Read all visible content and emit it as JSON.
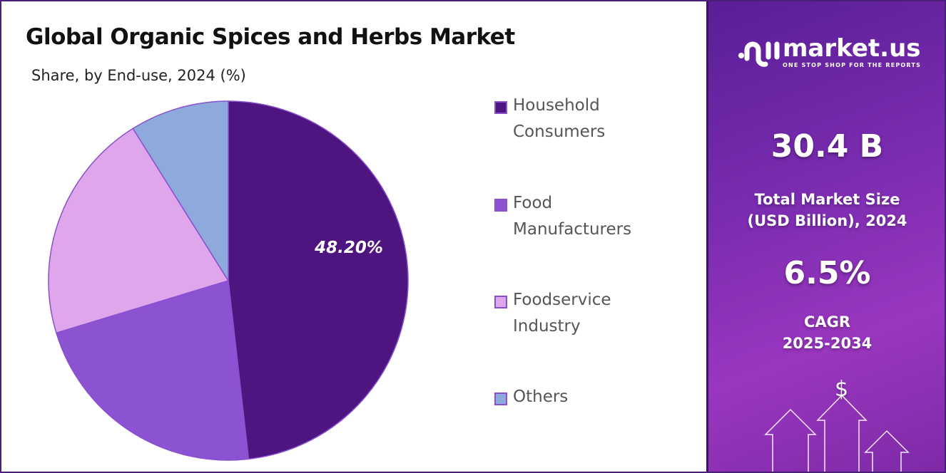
{
  "chart_data": {
    "type": "pie",
    "title": "Global Organic Spices and Herbs Market",
    "subtitle": "Share, by End-use, 2024 (%)",
    "categories": [
      "Household Consumers",
      "Food Manufacturers",
      "Foodservice Industry",
      "Others"
    ],
    "values": [
      48.2,
      22.1,
      20.8,
      8.9
    ],
    "data_labels": [
      "48.20%",
      "",
      "",
      ""
    ],
    "colors": [
      "#4e1581",
      "#8b52d2",
      "#dfa6ec",
      "#8eaadc"
    ],
    "legend_position": "right"
  },
  "legend": {
    "items": [
      {
        "line1": "Household",
        "line2": "Consumers"
      },
      {
        "line1": "Food",
        "line2": "Manufacturers"
      },
      {
        "line1": "Foodservice",
        "line2": "Industry"
      },
      {
        "line1": "Others",
        "line2": ""
      }
    ]
  },
  "sidebar": {
    "logo_name": "market.us",
    "logo_tagline": "ONE STOP SHOP FOR THE REPORTS",
    "market_size": "30.4 B",
    "market_size_label_1": "Total Market Size",
    "market_size_label_2": "(USD Billion), 2024",
    "cagr": "6.5%",
    "cagr_label_1": "CAGR",
    "cagr_label_2": "2025-2034",
    "dollar_icon": "$"
  }
}
